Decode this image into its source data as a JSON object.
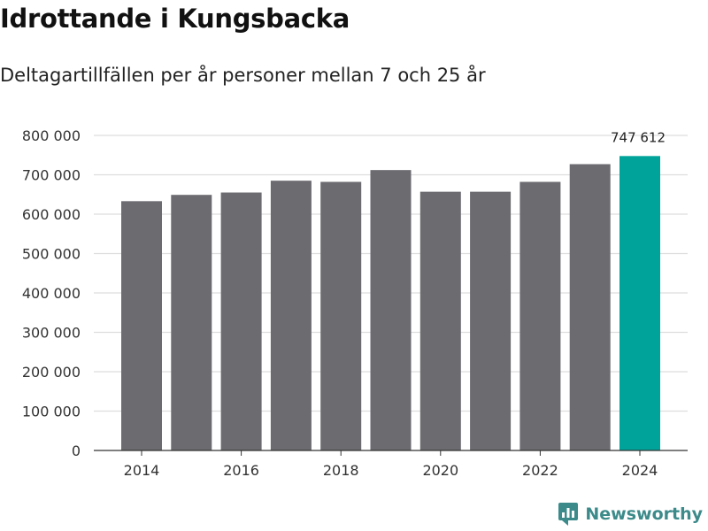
{
  "title": "Idrottande i Kungsbacka",
  "subtitle": "Deltagartillfällen per år personer mellan 7 och 25 år",
  "brand": {
    "name": "Newsworthy",
    "icon": "newsworthy-logo-icon",
    "color": "#3c8a8a"
  },
  "colors": {
    "bar": "#6c6b70",
    "highlight": "#00a39a",
    "grid": "#dddddd",
    "axis": "#333333"
  },
  "chart_data": {
    "type": "bar",
    "title": "Idrottande i Kungsbacka",
    "subtitle": "Deltagartillfällen per år personer mellan 7 och 25 år",
    "xlabel": "",
    "ylabel": "",
    "categories": [
      2014,
      2015,
      2016,
      2017,
      2018,
      2019,
      2020,
      2021,
      2022,
      2023,
      2024
    ],
    "values": [
      633000,
      649000,
      655000,
      685000,
      682000,
      712000,
      657000,
      657000,
      682000,
      727000,
      747612
    ],
    "highlight_index": 10,
    "data_labels": [
      {
        "index": 10,
        "text": "747 612"
      }
    ],
    "ylim": [
      0,
      800000
    ],
    "yticks": [
      0,
      100000,
      200000,
      300000,
      400000,
      500000,
      600000,
      700000,
      800000
    ],
    "ytick_labels": [
      "0",
      "100 000",
      "200 000",
      "300 000",
      "400 000",
      "500 000",
      "600 000",
      "700 000",
      "800 000"
    ],
    "xticks": [
      2014,
      2016,
      2018,
      2020,
      2022,
      2024
    ],
    "xtick_labels": [
      "2014",
      "2016",
      "2018",
      "2020",
      "2022",
      "2024"
    ],
    "grid": true,
    "legend": "none"
  }
}
